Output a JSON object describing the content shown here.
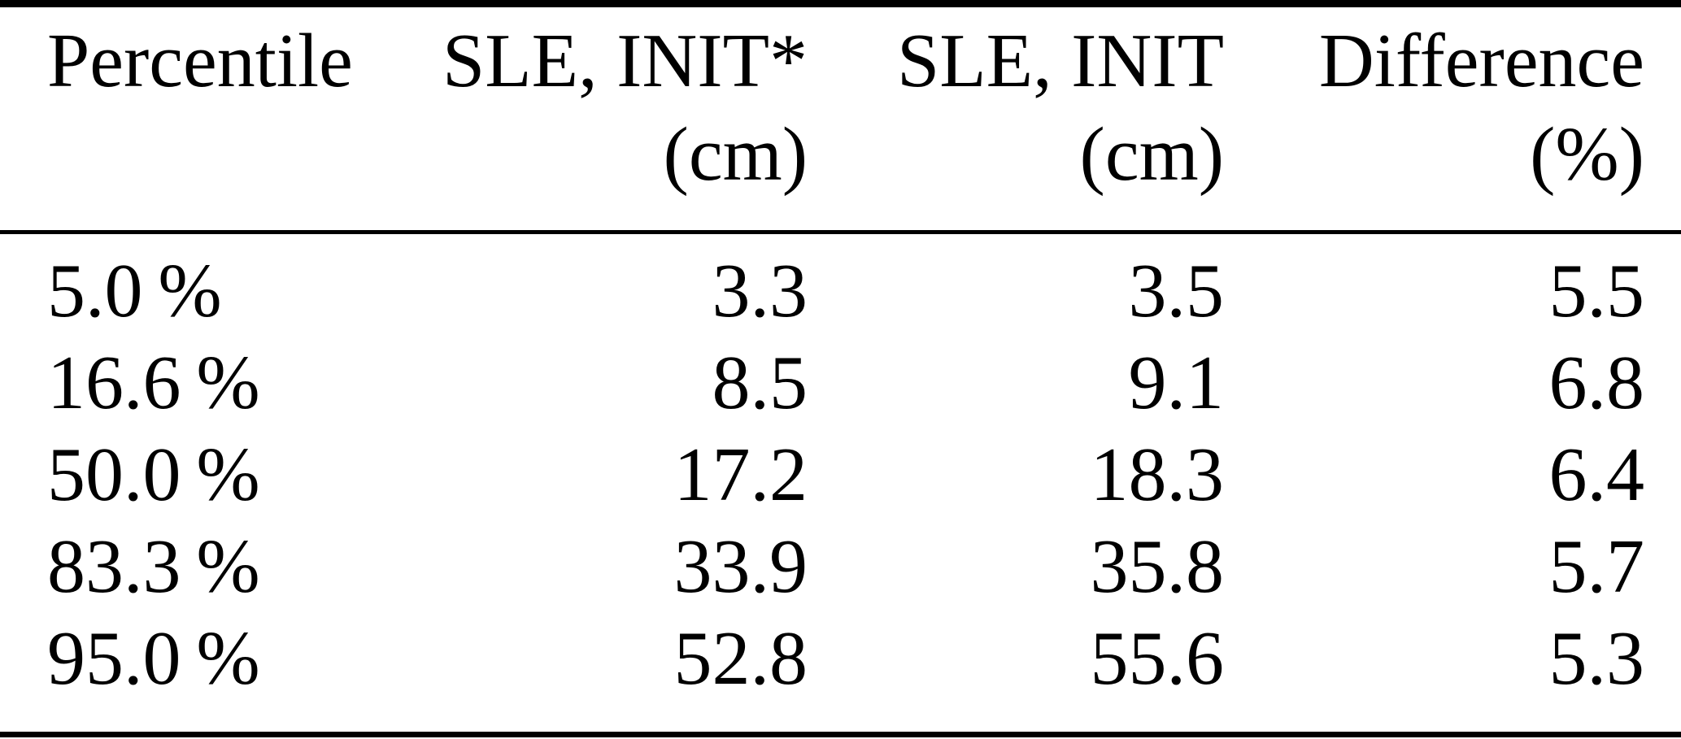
{
  "page": {
    "background": "#ffffff",
    "text_color": "#000000",
    "rule_color": "#000000"
  },
  "table": {
    "columns": [
      {
        "label": "Percentile",
        "unit": ""
      },
      {
        "label": "SLE, INIT*",
        "unit": "(cm)"
      },
      {
        "label": "SLE, INIT",
        "unit": "(cm)"
      },
      {
        "label": "Difference",
        "unit": "(%)"
      }
    ],
    "rows": [
      [
        "5.0 %",
        "3.3",
        "3.5",
        "5.5"
      ],
      [
        "16.6 %",
        "8.5",
        "9.1",
        "6.8"
      ],
      [
        "50.0 %",
        "17.2",
        "18.3",
        "6.4"
      ],
      [
        "83.3 %",
        "33.9",
        "35.8",
        "5.7"
      ],
      [
        "95.0 %",
        "52.8",
        "55.6",
        "5.3"
      ]
    ]
  },
  "chart_data": {
    "type": "table",
    "title": "",
    "columns": [
      "Percentile",
      "SLE, INIT* (cm)",
      "SLE, INIT (cm)",
      "Difference (%)"
    ],
    "percentiles": [
      5.0,
      16.6,
      50.0,
      83.3,
      95.0
    ],
    "sle_init_star_cm": [
      3.3,
      8.5,
      17.2,
      33.9,
      52.8
    ],
    "sle_init_cm": [
      3.5,
      9.1,
      18.3,
      35.8,
      55.6
    ],
    "difference_pct": [
      5.5,
      6.8,
      6.4,
      5.7,
      5.3
    ]
  }
}
